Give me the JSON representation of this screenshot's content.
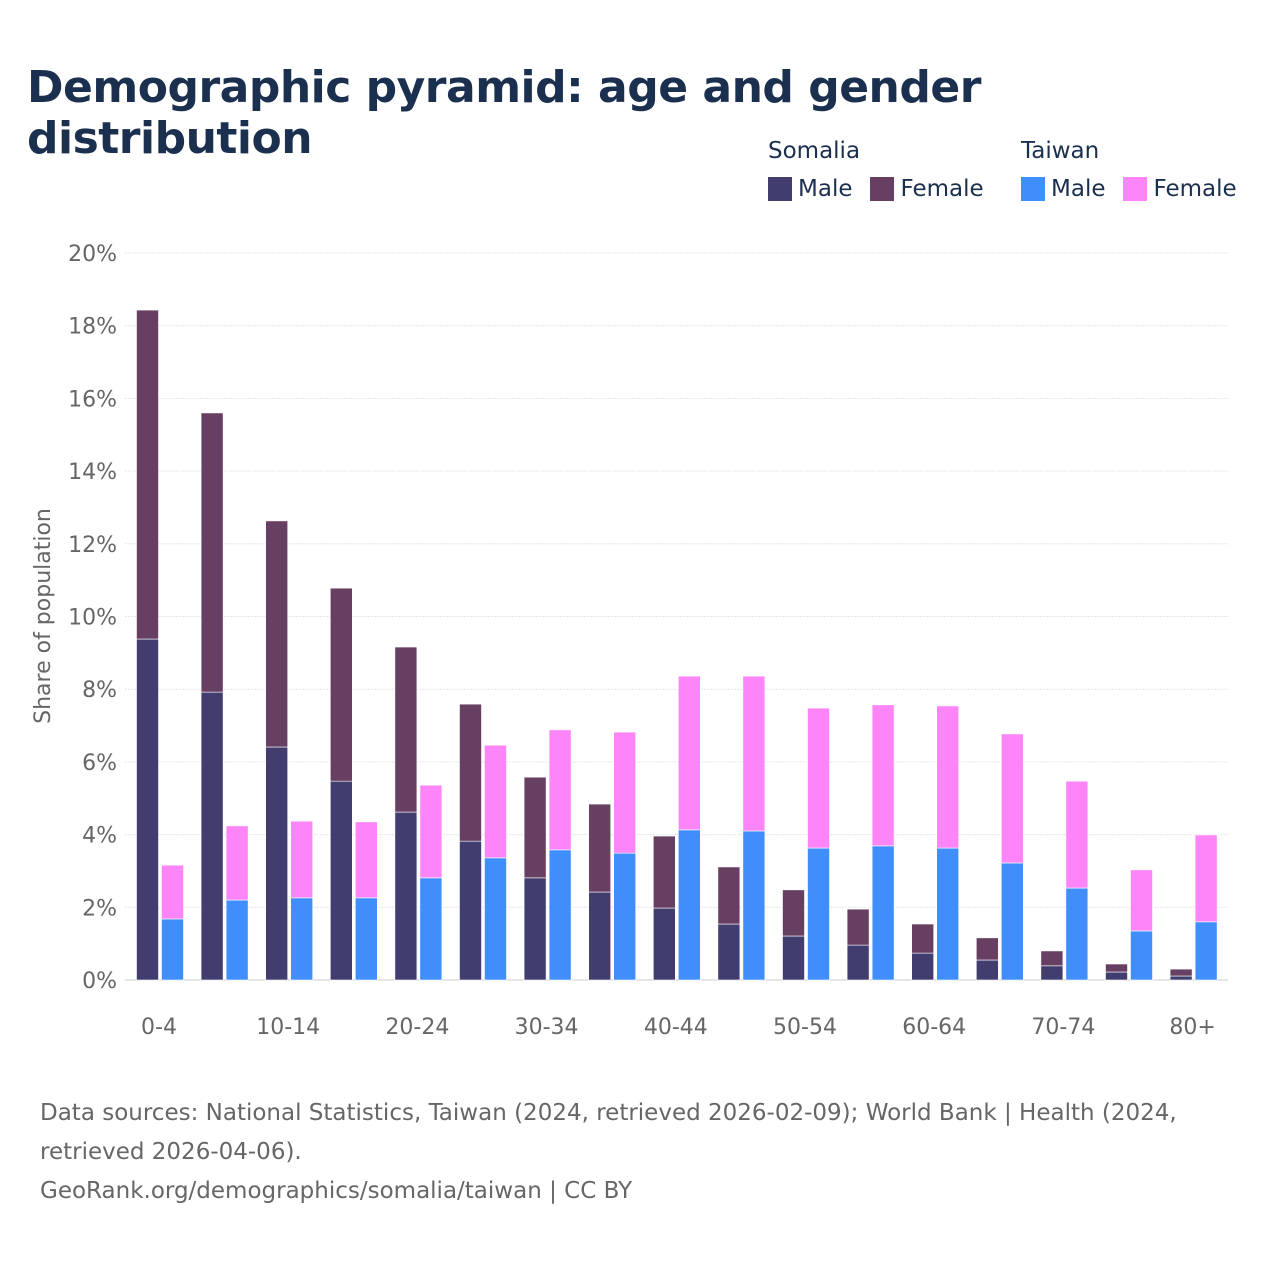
{
  "title": "Demographic pyramid: age and gender distribution",
  "legend": {
    "groups": [
      {
        "name": "Somalia",
        "items": [
          {
            "label": "Male",
            "color": "#413d6e"
          },
          {
            "label": "Female",
            "color": "#673f62"
          }
        ]
      },
      {
        "name": "Taiwan",
        "items": [
          {
            "label": "Male",
            "color": "#3f8efc"
          },
          {
            "label": "Female",
            "color": "#fd85f7"
          }
        ]
      }
    ]
  },
  "footer": {
    "sources": "Data sources: National Statistics, Taiwan (2024, retrieved 2026-02-09); World Bank | Health (2024, retrieved 2026-04-06).",
    "credit": "GeoRank.org/demographics/somalia/taiwan | CC BY"
  },
  "chart_data": {
    "type": "bar",
    "stacked": true,
    "title": "Demographic pyramid: age and gender distribution",
    "ylabel": "Share of population",
    "xlabel": "",
    "ylim": [
      0,
      20
    ],
    "yticks": [
      "0%",
      "2%",
      "4%",
      "6%",
      "8%",
      "10%",
      "12%",
      "14%",
      "16%",
      "18%",
      "20%"
    ],
    "categories": [
      "0-4",
      "5-9",
      "10-14",
      "15-19",
      "20-24",
      "25-29",
      "30-34",
      "35-39",
      "40-44",
      "45-49",
      "50-54",
      "55-59",
      "60-64",
      "65-69",
      "70-74",
      "75-79",
      "80+"
    ],
    "xtick_labels": [
      "0-4",
      "",
      "10-14",
      "",
      "20-24",
      "",
      "30-34",
      "",
      "40-44",
      "",
      "50-54",
      "",
      "60-64",
      "",
      "70-74",
      "",
      "80+"
    ],
    "grid": true,
    "legend_position": "top-right",
    "series": [
      {
        "name": "Somalia Male",
        "stack": "Somalia",
        "color": "#413d6e",
        "values": [
          9.38,
          7.92,
          6.41,
          5.47,
          4.62,
          3.82,
          2.81,
          2.42,
          1.98,
          1.54,
          1.21,
          0.96,
          0.74,
          0.55,
          0.39,
          0.22,
          0.11
        ]
      },
      {
        "name": "Somalia Female",
        "stack": "Somalia",
        "color": "#673f62",
        "values": [
          9.05,
          7.68,
          6.22,
          5.31,
          4.54,
          3.77,
          2.77,
          2.42,
          1.98,
          1.57,
          1.27,
          0.99,
          0.8,
          0.61,
          0.41,
          0.22,
          0.19
        ]
      },
      {
        "name": "Taiwan Male",
        "stack": "Taiwan",
        "color": "#3f8efc",
        "values": [
          1.68,
          2.2,
          2.26,
          2.26,
          2.81,
          3.36,
          3.58,
          3.49,
          4.13,
          4.1,
          3.63,
          3.69,
          3.63,
          3.22,
          2.53,
          1.35,
          1.6
        ]
      },
      {
        "name": "Taiwan Female",
        "stack": "Taiwan",
        "color": "#fd85f7",
        "values": [
          1.48,
          2.04,
          2.11,
          2.09,
          2.55,
          3.1,
          3.3,
          3.33,
          4.23,
          4.26,
          3.85,
          3.88,
          3.91,
          3.55,
          2.94,
          1.68,
          2.39
        ]
      }
    ]
  }
}
